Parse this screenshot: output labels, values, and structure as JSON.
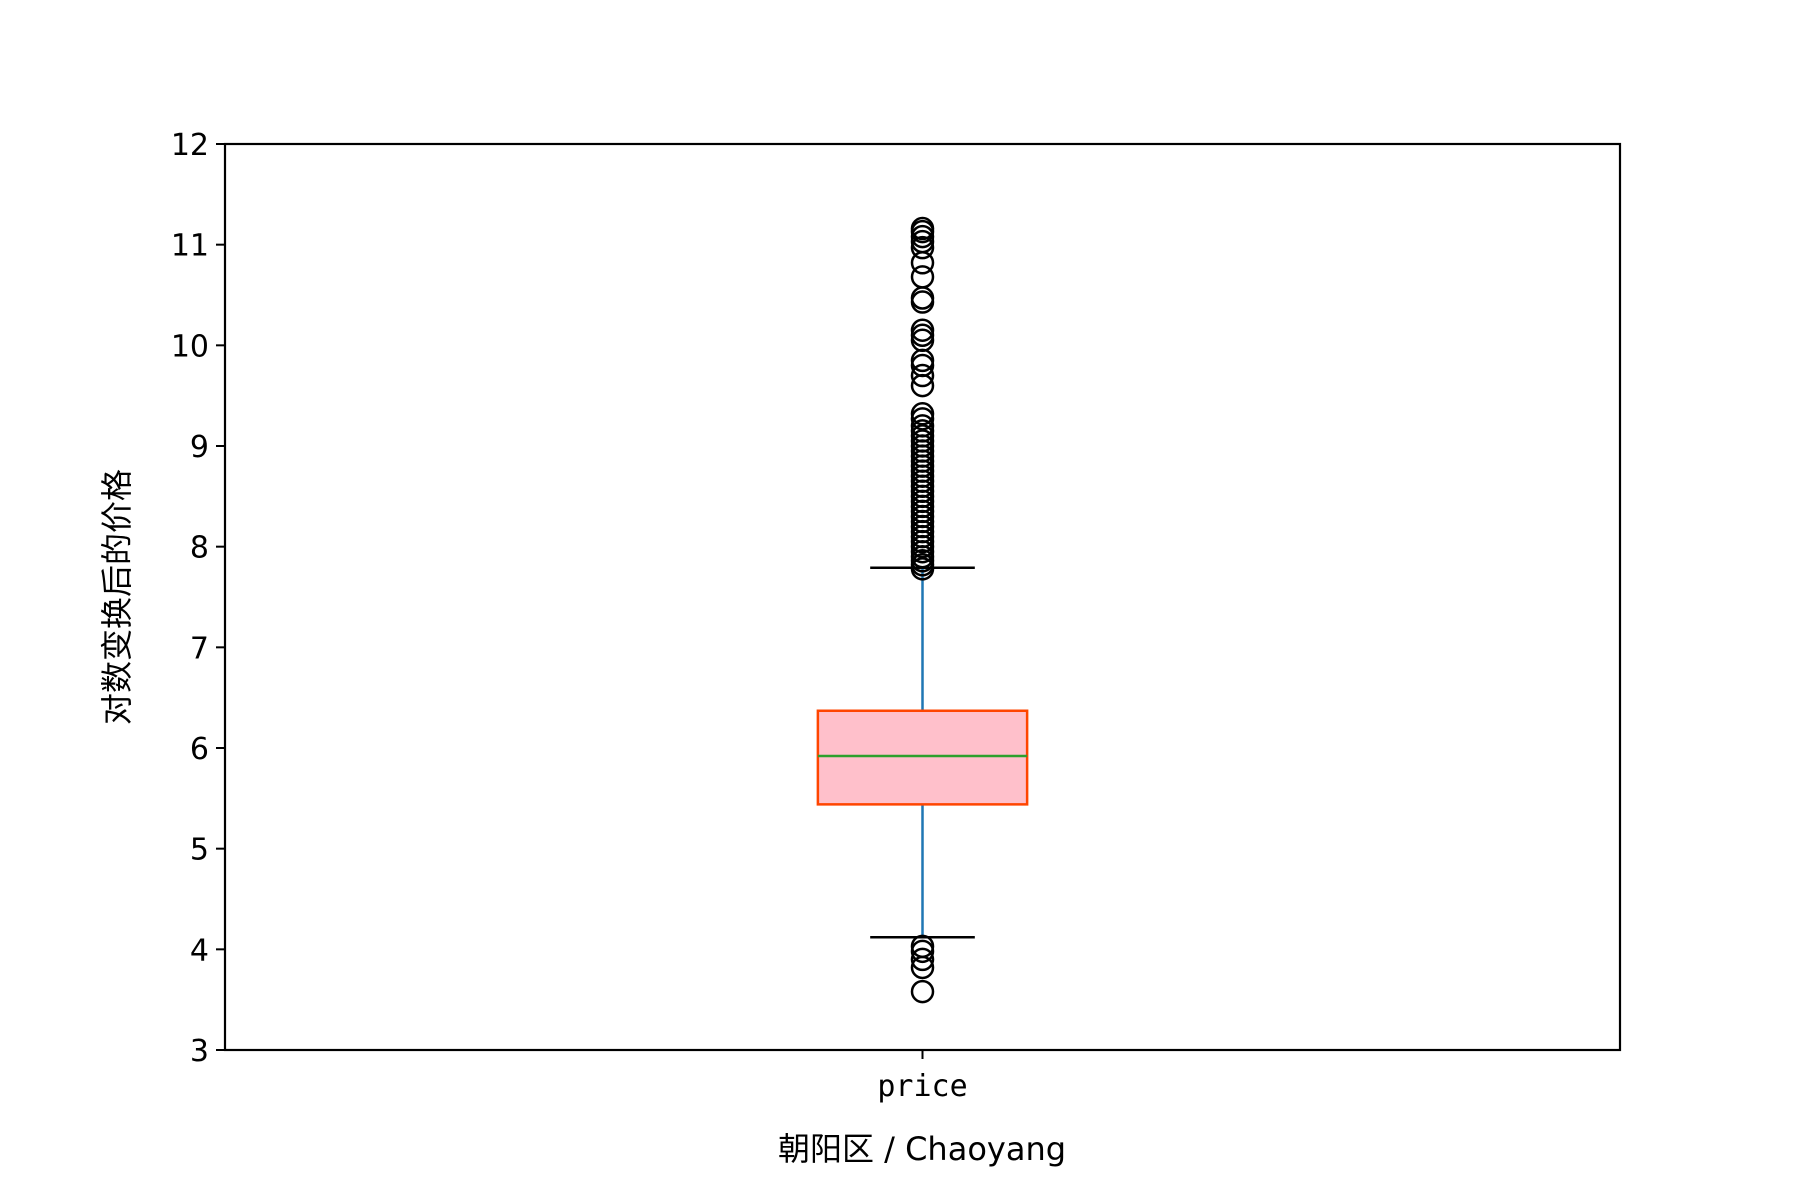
{
  "chart_data": {
    "type": "box",
    "title": "",
    "xlabel": "朝阳区 / Chaoyang",
    "ylabel": "对数变换后的价格",
    "categories": [
      "price"
    ],
    "ylim": [
      3,
      12
    ],
    "yticks": [
      3,
      4,
      5,
      6,
      7,
      8,
      9,
      10,
      11,
      12
    ],
    "grid": false,
    "boxes": [
      {
        "name": "price",
        "q1": 5.44,
        "median": 5.92,
        "q3": 6.37,
        "whisker_low": 4.12,
        "whisker_high": 7.79,
        "outliers_high": [
          7.78,
          7.82,
          7.86,
          7.9,
          7.95,
          8.0,
          8.05,
          8.1,
          8.15,
          8.2,
          8.25,
          8.3,
          8.35,
          8.4,
          8.45,
          8.5,
          8.55,
          8.6,
          8.65,
          8.7,
          8.75,
          8.8,
          8.85,
          8.9,
          8.95,
          9.0,
          9.05,
          9.1,
          9.15,
          9.2,
          9.27,
          9.32,
          9.6,
          9.7,
          9.8,
          9.85,
          10.05,
          10.1,
          10.15,
          10.43,
          10.47,
          10.68,
          10.82,
          10.97,
          11.03,
          11.08,
          11.13,
          11.16
        ],
        "outliers_low": [
          4.03,
          3.98,
          3.9,
          3.82,
          3.58
        ]
      }
    ],
    "colors": {
      "box_fill": "#ffc0cb",
      "box_edge": "#ff4500",
      "median": "#2ca02c",
      "whisker": "#1f77b4",
      "cap": "#000000",
      "flier": "#000000"
    }
  }
}
